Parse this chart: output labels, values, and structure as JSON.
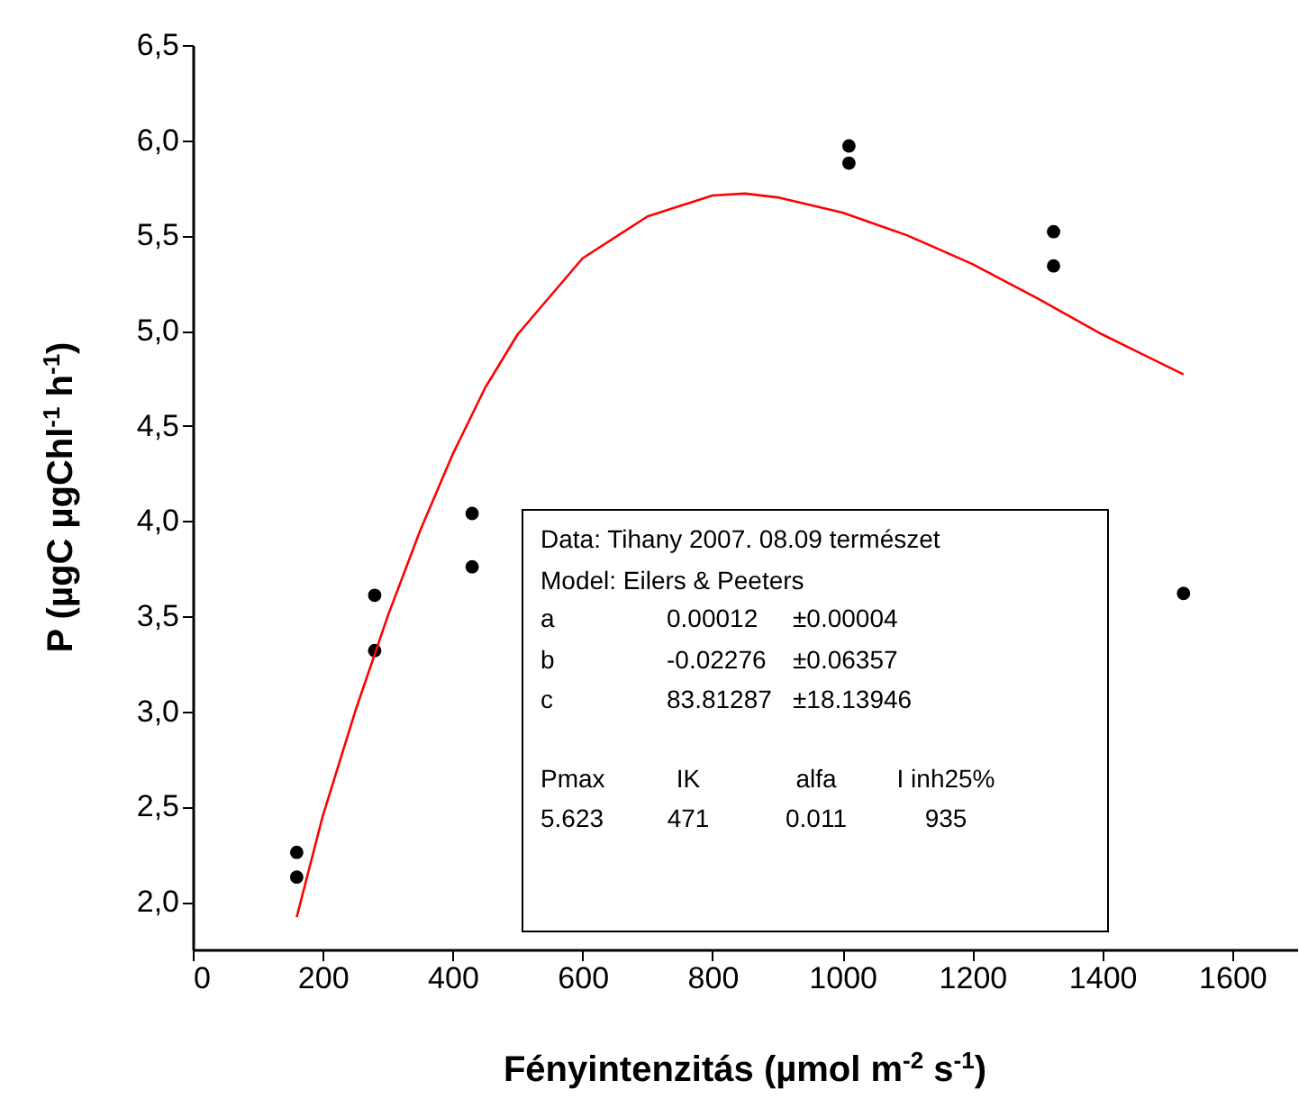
{
  "chart_data": {
    "type": "scatter",
    "xlabel": "Fényintenzitás (µmol m$^{-2}$ s$^{-1}$)",
    "ylabel": "P (µgC µgChl$^{-1}$ h$^{-1}$)",
    "xlim": [
      0,
      1700
    ],
    "xticks": [
      0,
      200,
      400,
      600,
      800,
      1000,
      1200,
      1400,
      1600
    ],
    "ylim": [
      1.75,
      6.5
    ],
    "yticks": [
      {
        "value": 2,
        "label": "2,0"
      },
      {
        "value": 2.5,
        "label": "2,5"
      },
      {
        "value": 3,
        "label": "3,0"
      },
      {
        "value": 3.5,
        "label": "3,5"
      },
      {
        "value": 4,
        "label": "4,0"
      },
      {
        "value": 4.5,
        "label": "4,5"
      },
      {
        "value": 5,
        "label": "5,0"
      },
      {
        "value": 5.5,
        "label": "5,5"
      },
      {
        "value": 6,
        "label": "6,0"
      },
      {
        "value": 6.5,
        "label": "6,5"
      }
    ],
    "grid": false,
    "marker": "circle",
    "series": [
      {
        "color": "#000000",
        "x": [
          160,
          160,
          280,
          280,
          430,
          430,
          1010,
          1010,
          1325,
          1325,
          1525
        ],
        "values": [
          2.26,
          2.13,
          3.61,
          3.32,
          4.04,
          3.76,
          5.97,
          5.88,
          5.52,
          5.34,
          3.62
        ]
      },
      {
        "type": "line",
        "marker": "none",
        "color": "#ff0000",
        "x": [
          160,
          200,
          250,
          300,
          350,
          400,
          450,
          500,
          600,
          700,
          800,
          850,
          900,
          1000,
          1100,
          1200,
          1300,
          1400,
          1525
        ],
        "values": [
          1.92,
          2.45,
          3.0,
          3.5,
          3.95,
          4.35,
          4.7,
          4.98,
          5.38,
          5.6,
          5.71,
          5.72,
          5.7,
          5.62,
          5.5,
          5.35,
          5.17,
          4.98,
          4.77
        ]
      }
    ],
    "annotations": [
      "Data: Tihany 2007. 08.09  természet",
      "Model: Eilers & Peeters",
      "a",
      "0.00012",
      "±0.00004",
      "b",
      "-0.02276",
      "±0.06357",
      "c",
      "83.81287",
      "±18.13946",
      "Pmax",
      "IK",
      "alfa",
      "I inh25%",
      "5.623",
      "471",
      "0.011",
      "935"
    ]
  }
}
